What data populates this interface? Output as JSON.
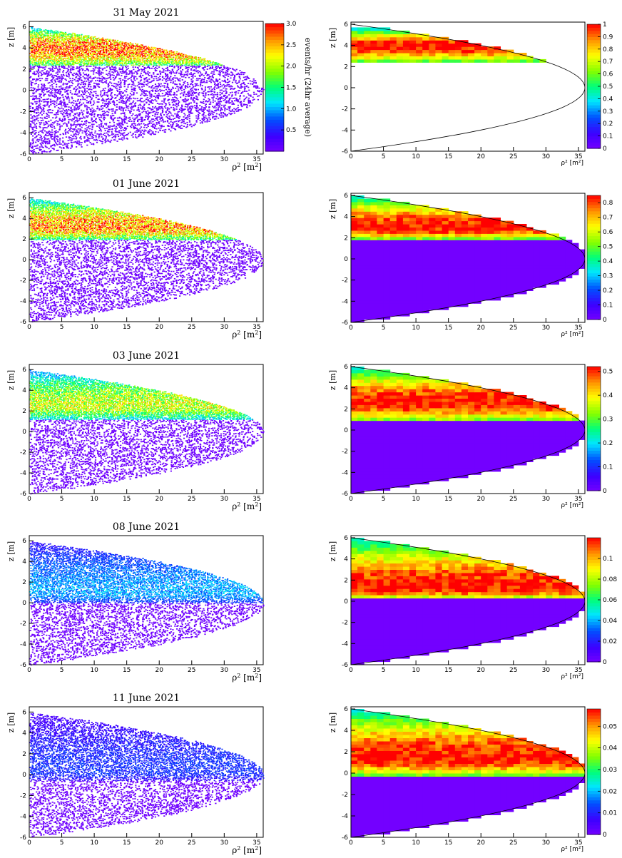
{
  "figure": {
    "colorbar_label": "events/hr (24hr average)",
    "left_xlabel_base": "ρ",
    "left_xlabel_sup": "2",
    "left_xlabel_unit": "[m",
    "left_xlabel_unit_sup": "2",
    "left_xlabel_close": "]",
    "left_ylabel": "z [m]",
    "right_xlabel": "ρ² [m²]",
    "right_ylabel": "z [m]"
  },
  "chart_data": [
    {
      "type": "heatmap",
      "panel": "scatter",
      "title": "31 May 2021",
      "xlim": [
        0,
        36
      ],
      "ylim": [
        -6,
        6.5
      ],
      "x_ticks": [
        0,
        5,
        10,
        15,
        20,
        25,
        30,
        35
      ],
      "y_ticks": [
        -6,
        -4,
        -2,
        0,
        2,
        4,
        6
      ],
      "band": {
        "z_low": 2.4,
        "z_high": 6.0,
        "peak_z": 3.9,
        "peak_level": 1.0
      },
      "colorbar": {
        "ticks": [
          "0.5",
          "1.0",
          "1.5",
          "2.0",
          "2.5",
          "3.0"
        ],
        "max": 3.0
      }
    },
    {
      "type": "heatmap",
      "panel": "binned",
      "title": "",
      "xlim": [
        0,
        36
      ],
      "ylim": [
        -6,
        6.2
      ],
      "x_ticks": [
        0,
        5,
        10,
        15,
        20,
        25,
        30,
        35
      ],
      "y_ticks": [
        -6,
        -4,
        -2,
        0,
        2,
        4,
        6
      ],
      "band": {
        "z_low": 2.4,
        "z_high": 5.6,
        "peak_z": 4.0,
        "peak_level": 1.0,
        "fill_lower": false
      },
      "colorbar": {
        "ticks": [
          "0",
          "0.1",
          "0.2",
          "0.3",
          "0.4",
          "0.5",
          "0.6",
          "0.7",
          "0.8",
          "0.9",
          "1"
        ],
        "max": 1
      }
    },
    {
      "type": "heatmap",
      "panel": "scatter",
      "title": "01 June 2021",
      "xlim": [
        0,
        36
      ],
      "ylim": [
        -6,
        6.5
      ],
      "x_ticks": [
        0,
        5,
        10,
        15,
        20,
        25,
        30,
        35
      ],
      "y_ticks": [
        -6,
        -4,
        -2,
        0,
        2,
        4,
        6
      ],
      "band": {
        "z_low": 2.0,
        "z_high": 6.0,
        "peak_z": 3.2,
        "peak_level": 0.95
      }
    },
    {
      "type": "heatmap",
      "panel": "binned",
      "title": "",
      "xlim": [
        0,
        36
      ],
      "ylim": [
        -6,
        6.2
      ],
      "x_ticks": [
        0,
        5,
        10,
        15,
        20,
        25,
        30,
        35
      ],
      "y_ticks": [
        -6,
        -4,
        -2,
        0,
        2,
        4,
        6
      ],
      "band": {
        "z_low": 1.8,
        "z_high": 6.0,
        "peak_z": 3.0,
        "peak_level": 1.0,
        "fill_lower": true
      },
      "colorbar": {
        "ticks": [
          "0",
          "0.1",
          "0.2",
          "0.3",
          "0.4",
          "0.5",
          "0.6",
          "0.7",
          "0.8"
        ],
        "max": 0.85
      }
    },
    {
      "type": "heatmap",
      "panel": "scatter",
      "title": "03 June 2021",
      "xlim": [
        0,
        36
      ],
      "ylim": [
        -6,
        6.5
      ],
      "x_ticks": [
        0,
        5,
        10,
        15,
        20,
        25,
        30,
        35
      ],
      "y_ticks": [
        -6,
        -4,
        -2,
        0,
        2,
        4,
        6
      ],
      "band": {
        "z_low": 1.2,
        "z_high": 6.0,
        "peak_z": 2.6,
        "peak_level": 0.75
      }
    },
    {
      "type": "heatmap",
      "panel": "binned",
      "title": "",
      "xlim": [
        0,
        36
      ],
      "ylim": [
        -6,
        6.2
      ],
      "x_ticks": [
        0,
        5,
        10,
        15,
        20,
        25,
        30,
        35
      ],
      "y_ticks": [
        -6,
        -4,
        -2,
        0,
        2,
        4,
        6
      ],
      "band": {
        "z_low": 0.8,
        "z_high": 6.0,
        "peak_z": 2.6,
        "peak_level": 1.0,
        "fill_lower": true
      },
      "colorbar": {
        "ticks": [
          "0",
          "0.1",
          "0.2",
          "0.3",
          "0.4",
          "0.5"
        ],
        "max": 0.52
      }
    },
    {
      "type": "heatmap",
      "panel": "scatter",
      "title": "08 June 2021",
      "xlim": [
        0,
        36
      ],
      "ylim": [
        -6,
        6.5
      ],
      "x_ticks": [
        0,
        5,
        10,
        15,
        20,
        25,
        30,
        35
      ],
      "y_ticks": [
        -6,
        -4,
        -2,
        0,
        2,
        4,
        6
      ],
      "band": {
        "z_low": 0.0,
        "z_high": 6.0,
        "peak_z": 1.0,
        "peak_level": 0.35
      }
    },
    {
      "type": "heatmap",
      "panel": "binned",
      "title": "",
      "xlim": [
        0,
        36
      ],
      "ylim": [
        -6,
        6.2
      ],
      "x_ticks": [
        0,
        5,
        10,
        15,
        20,
        25,
        30,
        35
      ],
      "y_ticks": [
        -6,
        -4,
        -2,
        0,
        2,
        4,
        6
      ],
      "band": {
        "z_low": 0.2,
        "z_high": 6.0,
        "peak_z": 1.2,
        "peak_level": 1.0,
        "fill_lower": true
      },
      "colorbar": {
        "ticks": [
          "0",
          "0.02",
          "0.04",
          "0.06",
          "0.08",
          "0.1"
        ],
        "max": 0.12
      }
    },
    {
      "type": "heatmap",
      "panel": "scatter",
      "title": "11 June 2021",
      "xlim": [
        0,
        36
      ],
      "ylim": [
        -6,
        6.5
      ],
      "x_ticks": [
        0,
        5,
        10,
        15,
        20,
        25,
        30,
        35
      ],
      "y_ticks": [
        -6,
        -4,
        -2,
        0,
        2,
        4,
        6
      ],
      "band": {
        "z_low": -0.6,
        "z_high": 6.0,
        "peak_z": 0.3,
        "peak_level": 0.22
      }
    },
    {
      "type": "heatmap",
      "panel": "binned",
      "title": "",
      "xlim": [
        0,
        36
      ],
      "ylim": [
        -6,
        6.2
      ],
      "x_ticks": [
        0,
        5,
        10,
        15,
        20,
        25,
        30,
        35
      ],
      "y_ticks": [
        -6,
        -4,
        -2,
        0,
        2,
        4,
        6
      ],
      "band": {
        "z_low": -0.3,
        "z_high": 6.0,
        "peak_z": 1.4,
        "peak_level": 1.0,
        "fill_lower": true
      },
      "colorbar": {
        "ticks": [
          "0",
          "0.01",
          "0.02",
          "0.03",
          "0.04",
          "0.05"
        ],
        "max": 0.058
      }
    }
  ]
}
